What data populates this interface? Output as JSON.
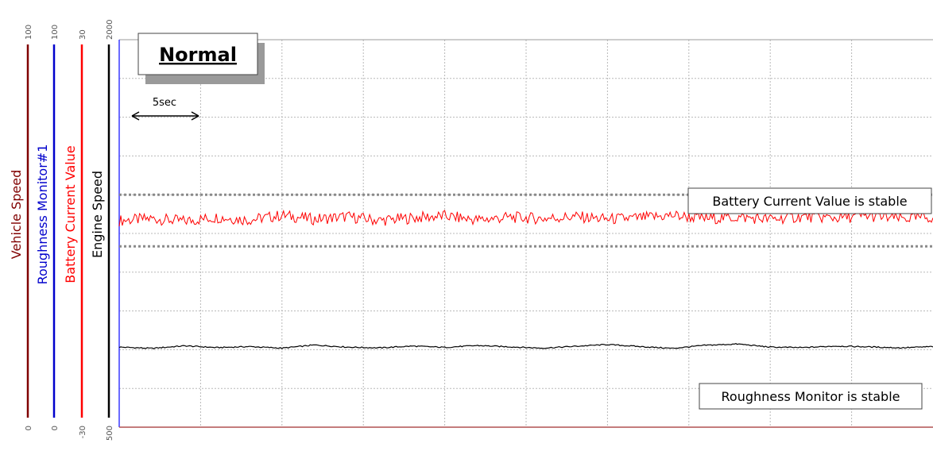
{
  "title_box": "Normal",
  "time_marker": "5sec",
  "annotations": {
    "battery_note": "Battery Current Value is stable",
    "roughness_note": "Roughness Monitor is stable"
  },
  "axes": [
    {
      "key": "vehicle_speed",
      "label": "Vehicle Speed",
      "min": "0",
      "max": "100",
      "color": "#800000"
    },
    {
      "key": "roughness",
      "label": "Roughness Monitor#1",
      "min": "0",
      "max": "100",
      "color": "#0000cc"
    },
    {
      "key": "battery_current",
      "label": "Battery Current Value",
      "min": "-30",
      "max": "30",
      "color": "#ff0000"
    },
    {
      "key": "engine_speed",
      "label": "Engine Speed",
      "min": "500",
      "max": "2000",
      "color": "#000000"
    }
  ],
  "chart_data": {
    "type": "line",
    "grid": true,
    "x_range_sec": [
      0,
      50
    ],
    "x_grid_step_sec": 5,
    "series": [
      {
        "name": "Battery Current Value",
        "axis": "battery_current",
        "ylim": [
          -30,
          30
        ],
        "color": "#ff0000",
        "x": [
          0,
          2,
          4,
          6,
          8,
          10,
          12,
          14,
          16,
          18,
          20,
          22,
          24,
          26,
          28,
          30,
          32,
          34,
          36,
          38,
          40,
          42,
          44,
          46,
          48,
          50
        ],
        "values": [
          2.0,
          2.3,
          1.9,
          2.5,
          2.1,
          2.8,
          2.2,
          2.6,
          2.0,
          2.4,
          2.7,
          2.1,
          2.5,
          2.3,
          2.6,
          2.2,
          2.4,
          2.8,
          2.3,
          2.5,
          2.2,
          2.6,
          2.4,
          2.7,
          2.3,
          2.5
        ]
      },
      {
        "name": "Engine Speed",
        "axis": "engine_speed",
        "ylim": [
          500,
          2000
        ],
        "color": "#000000",
        "x": [
          0,
          2,
          4,
          6,
          8,
          10,
          12,
          14,
          16,
          18,
          20,
          22,
          24,
          26,
          28,
          30,
          32,
          34,
          36,
          38,
          40,
          42,
          44,
          46,
          48,
          50
        ],
        "values": [
          810,
          805,
          815,
          808,
          812,
          806,
          818,
          810,
          807,
          814,
          809,
          816,
          811,
          806,
          813,
          820,
          812,
          805,
          817,
          822,
          810,
          808,
          814,
          811,
          807,
          812
        ]
      }
    ],
    "reference_lines": [
      {
        "axis": "battery_current",
        "value": 6
      },
      {
        "axis": "battery_current",
        "value": -2
      }
    ]
  }
}
